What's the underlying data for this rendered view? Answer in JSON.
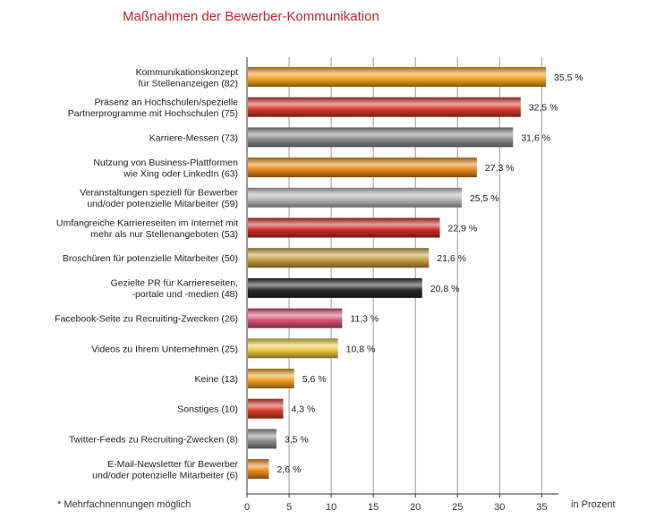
{
  "chart_data": {
    "type": "bar",
    "orientation": "horizontal",
    "title": "Maßnahmen der Bewerber-Kommunikation",
    "xunit": "in Prozent",
    "footnote": "* Mehrfachnennungen möglich",
    "xlim": [
      0,
      37
    ],
    "xticks": [
      0,
      5,
      10,
      15,
      20,
      25,
      30,
      35
    ],
    "grid": true,
    "categories": [
      [
        "Kommunikationskonzept",
        "für Stellenanzeigen (82)"
      ],
      [
        "Präsenz an Hochschulen/spezielle",
        "Partnerprogramme mit Hochschulen (75)"
      ],
      [
        "Karriere-Messen (73)"
      ],
      [
        "Nutzung von Business-Plattformen",
        "wie Xing oder LinkedIn (63)"
      ],
      [
        "Veranstaltungen speziell für Bewerber",
        "und/oder potenzielle Mitarbeiter (59)"
      ],
      [
        "Umfangreiche Karriereseiten im Internet mit",
        "mehr als nur Stellenangeboten (53)"
      ],
      [
        "Broschüren für potenzielle Mitarbeiter (50)"
      ],
      [
        "Gezielte PR für Karriereseiten,",
        "-portale und -medien (48)"
      ],
      [
        "Facebook-Seite zu Recruiting-Zwecken (26)"
      ],
      [
        "Videos zu Ihrem Unternehmen (25)"
      ],
      [
        "Keine (13)"
      ],
      [
        "Sonstiges (10)"
      ],
      [
        "Twitter-Feeds zu Recruiting-Zwecken (8)"
      ],
      [
        "E-Mail-Newsletter für Bewerber",
        "und/oder potenzielle Mitarbeiter (6)"
      ]
    ],
    "values": [
      35.5,
      32.5,
      31.6,
      27.3,
      25.5,
      22.9,
      21.6,
      20.8,
      11.3,
      10.8,
      5.6,
      4.3,
      3.5,
      2.6
    ],
    "value_labels": [
      "35,5 %",
      "32,5 %",
      "31,6 %",
      "27,3 %",
      "25,5 %",
      "22,9 %",
      "21,6 %",
      "20,8 %",
      "11,3 %",
      "10,8 %",
      "5,6 %",
      "4,3 %",
      "3,5 %",
      "2,6 %"
    ],
    "bar_colors": [
      "#f0a020",
      "#d83a2c",
      "#8e8e8e",
      "#e88a1c",
      "#b8b8b8",
      "#d42a2a",
      "#c8a040",
      "#2a2a2a",
      "#d8507a",
      "#e8c840",
      "#f0a020",
      "#d83a2c",
      "#8e8e8e",
      "#e88a1c"
    ]
  }
}
